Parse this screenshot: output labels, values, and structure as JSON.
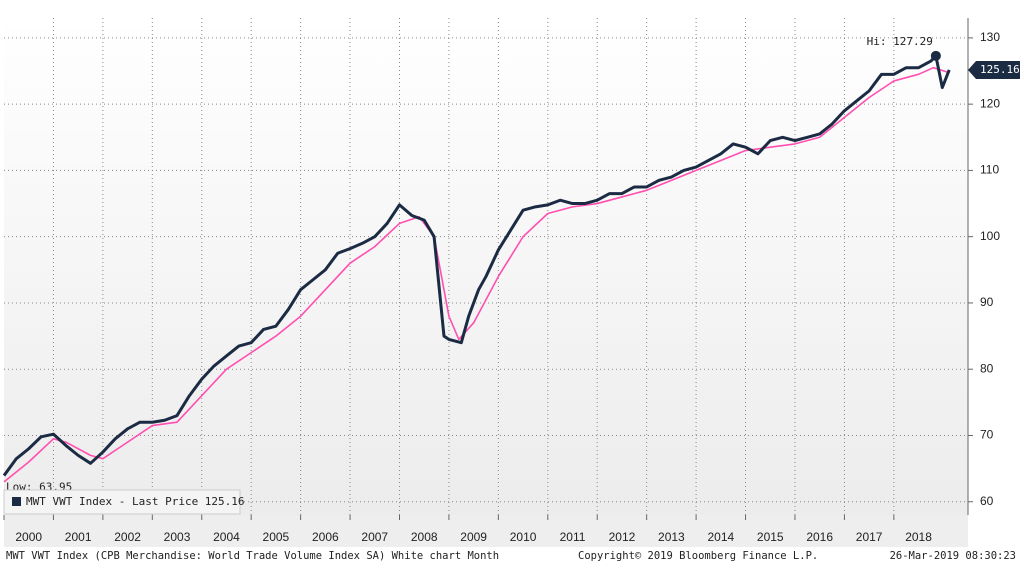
{
  "chart_data": {
    "type": "line",
    "footer": "MWT VWT Index (CPB Merchandise: World Trade Volume Index  SA) White chart  Month",
    "copyright": "Copyright© 2019 Bloomberg Finance L.P.",
    "timestamp": "26-Mar-2019 08:30:23",
    "high_label": "Hi: 127.29",
    "low_label": "Low: 63.95",
    "last_label": "125.16",
    "last_value": 125.16,
    "series": [
      {
        "name": "MWT VWT Index - Last Price 125.16",
        "color": "#1c2b44",
        "x": [
          2000.0,
          2000.25,
          2000.5,
          2000.75,
          2001.0,
          2001.25,
          2001.5,
          2001.75,
          2002.0,
          2002.25,
          2002.5,
          2002.75,
          2003.0,
          2003.25,
          2003.5,
          2003.75,
          2004.0,
          2004.25,
          2004.5,
          2004.75,
          2005.0,
          2005.25,
          2005.5,
          2005.75,
          2006.0,
          2006.25,
          2006.5,
          2006.75,
          2007.0,
          2007.25,
          2007.5,
          2007.75,
          2008.0,
          2008.25,
          2008.5,
          2008.7,
          2008.9,
          2009.0,
          2009.25,
          2009.4,
          2009.6,
          2009.75,
          2010.0,
          2010.25,
          2010.5,
          2010.75,
          2011.0,
          2011.25,
          2011.5,
          2011.75,
          2012.0,
          2012.25,
          2012.5,
          2012.75,
          2013.0,
          2013.25,
          2013.5,
          2013.75,
          2014.0,
          2014.25,
          2014.5,
          2014.75,
          2015.0,
          2015.25,
          2015.5,
          2015.75,
          2016.0,
          2016.25,
          2016.5,
          2016.75,
          2017.0,
          2017.25,
          2017.5,
          2017.75,
          2018.0,
          2018.25,
          2018.5,
          2018.75,
          2018.85,
          2018.98,
          2019.12
        ],
        "values": [
          63.95,
          66.5,
          68,
          69.8,
          70.2,
          68.5,
          67,
          65.8,
          67.5,
          69.5,
          71,
          72,
          72,
          72.3,
          73,
          76,
          78.5,
          80.5,
          82,
          83.5,
          84,
          86,
          86.5,
          89,
          92,
          93.5,
          95,
          97.5,
          98.2,
          99,
          100,
          102,
          104.8,
          103.2,
          102.5,
          100,
          85,
          84.5,
          84,
          88,
          92,
          94,
          98,
          101,
          104,
          104.5,
          104.8,
          105.5,
          105,
          105,
          105.5,
          106.5,
          106.5,
          107.5,
          107.5,
          108.5,
          109,
          110,
          110.5,
          111.5,
          112.5,
          114,
          113.5,
          112.5,
          114.5,
          115,
          114.5,
          115,
          115.5,
          117,
          119,
          120.5,
          122,
          124.5,
          124.5,
          125.5,
          125.5,
          126.5,
          127.29,
          122.5,
          125.16
        ]
      },
      {
        "color": "#ff4fb0",
        "x": [
          2000.0,
          2000.5,
          2001.0,
          2001.25,
          2001.75,
          2002.0,
          2002.5,
          2003.0,
          2003.5,
          2004.0,
          2004.5,
          2005.0,
          2005.5,
          2006.0,
          2006.5,
          2007.0,
          2007.5,
          2008.0,
          2008.4,
          2008.7,
          2009.0,
          2009.2,
          2009.5,
          2010.0,
          2010.5,
          2011.0,
          2011.5,
          2012.0,
          2012.5,
          2013.0,
          2013.5,
          2014.0,
          2014.5,
          2015.0,
          2015.5,
          2016.0,
          2016.5,
          2017.0,
          2017.5,
          2018.0,
          2018.5,
          2018.8,
          2019.1
        ],
        "values": [
          63,
          66,
          69.5,
          69,
          67,
          66.5,
          69,
          71.5,
          72,
          76,
          80,
          82.5,
          85,
          88,
          92,
          96,
          98.5,
          102,
          103,
          100,
          88,
          84.5,
          87,
          94,
          100,
          103.5,
          104.5,
          105,
          106,
          107,
          108.5,
          110,
          111.5,
          113,
          113.5,
          114,
          115,
          118,
          121,
          123.5,
          124.5,
          125.5,
          124.8
        ]
      }
    ],
    "xlim": [
      2000,
      2019.5
    ],
    "xticks": [
      2000,
      2001,
      2002,
      2003,
      2004,
      2005,
      2006,
      2007,
      2008,
      2009,
      2010,
      2011,
      2012,
      2013,
      2014,
      2015,
      2016,
      2017,
      2018
    ],
    "ylim": [
      58,
      133
    ],
    "yticks": [
      60,
      70,
      80,
      90,
      100,
      110,
      120,
      130
    ],
    "grid": true
  }
}
